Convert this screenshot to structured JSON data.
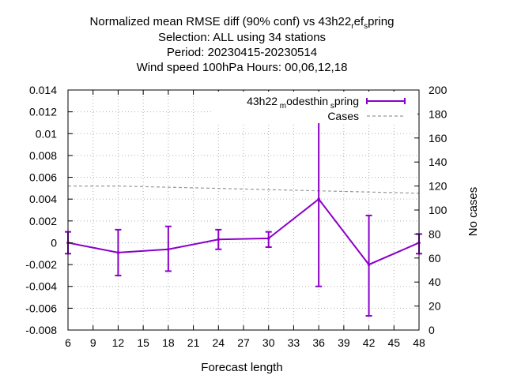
{
  "chart_data": {
    "type": "line",
    "title_lines": [
      "Normalized mean RMSE diff (90% conf) vs 43h22_ref_spring",
      "Selection: ALL using    34 stations",
      "Period: 20230415-20230514",
      "Wind speed 100hPa   Hours:  00,06,12,18"
    ],
    "xlabel": "Forecast length",
    "ylabel": "",
    "y2label": "No cases",
    "xlim": [
      6,
      48
    ],
    "ylim": [
      -0.008,
      0.014
    ],
    "y2lim": [
      0,
      200
    ],
    "xticks": [
      "6",
      "9",
      "12",
      "15",
      "18",
      "21",
      "24",
      "27",
      "30",
      "33",
      "36",
      "39",
      "42",
      "45",
      "48"
    ],
    "yticks": [
      "0.014",
      "0.012",
      "0.01",
      "0.008",
      "0.006",
      "0.004",
      "0.002",
      "0",
      "-0.002",
      "-0.004",
      "-0.006",
      "-0.008"
    ],
    "y2ticks": [
      "200",
      "180",
      "160",
      "140",
      "120",
      "100",
      "80",
      "60",
      "40",
      "20",
      "0"
    ],
    "grid": true,
    "legend_position": "top-right",
    "series": [
      {
        "name": "43h22_modesthin_spring",
        "color": "#8b00c8",
        "x": [
          6,
          12,
          18,
          24,
          30,
          36,
          42,
          48
        ],
        "y": [
          0.0,
          -0.0009,
          -0.0006,
          0.0003,
          0.0004,
          0.004,
          -0.002,
          0.0
        ],
        "err_low": [
          -0.001,
          -0.003,
          -0.0026,
          -0.0006,
          -0.0004,
          -0.004,
          -0.0067,
          -0.001
        ],
        "err_high": [
          0.001,
          0.0012,
          0.0015,
          0.0012,
          0.001,
          0.012,
          0.0025,
          0.0008
        ]
      },
      {
        "name": "Cases",
        "color": "#999999",
        "axis": "y2",
        "x": [
          6,
          12,
          18,
          24,
          30,
          36,
          42,
          48
        ],
        "y": [
          120,
          120,
          119,
          118,
          117,
          116,
          115,
          114
        ]
      }
    ]
  }
}
